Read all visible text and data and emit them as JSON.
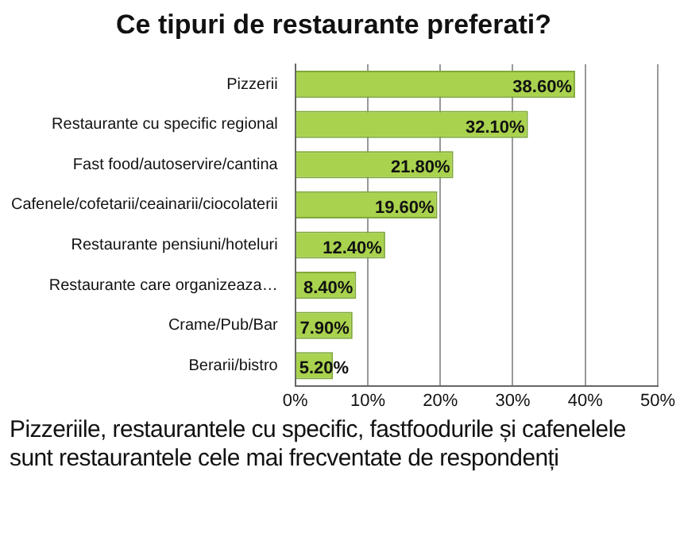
{
  "chart_data": {
    "type": "bar",
    "orientation": "horizontal",
    "title": "Ce tipuri de restaurante preferati?",
    "categories": [
      "Pizzerii",
      "Restaurante cu specific regional",
      "Fast food/autoservire/cantina",
      "Cafenele/cofetarii/ceainarii/ciocolaterii",
      "Restaurante pensiuni/hoteluri",
      "Restaurante care organizeaza…",
      "Crame/Pub/Bar",
      "Berarii/bistro"
    ],
    "values": [
      38.6,
      32.1,
      21.8,
      19.6,
      12.4,
      8.4,
      7.9,
      5.2
    ],
    "value_labels": [
      "38.60%",
      "32.10%",
      "21.80%",
      "19.60%",
      "12.40%",
      "8.40%",
      "7.90%",
      "5.20%"
    ],
    "color": "#a9d24e",
    "xlim": [
      0,
      50
    ],
    "xticks": [
      {
        "value": 0,
        "label": "0%"
      },
      {
        "value": 10,
        "label": "10%"
      },
      {
        "value": 20,
        "label": "20%"
      },
      {
        "value": 30,
        "label": "30%"
      },
      {
        "value": 40,
        "label": "40%"
      },
      {
        "value": 50,
        "label": "50%"
      }
    ],
    "grid": "x",
    "legend": false,
    "annotations": [
      "Pizzeriile, restaurantele cu specific, fastfoodurile și cafenelele sunt restaurantele cele mai frecventate de respondenți"
    ]
  }
}
